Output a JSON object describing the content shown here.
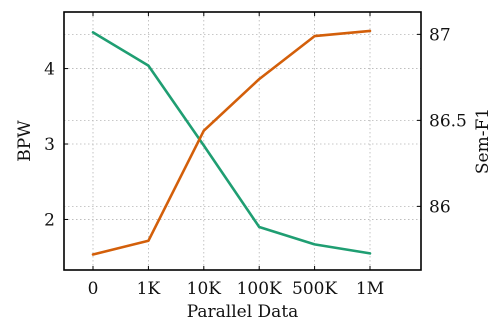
{
  "chart_data": {
    "type": "line",
    "title": "",
    "xlabel": "Parallel Data",
    "ylabel_left": "BPW",
    "ylabel_right": "Sem-F1",
    "categories": [
      "0",
      "1K",
      "10K",
      "100K",
      "500K",
      "1M"
    ],
    "ylim_left": [
      1.33,
      4.75
    ],
    "ylim_right": [
      85.63,
      87.13
    ],
    "yticks_left": [
      "2",
      "3",
      "4"
    ],
    "yticks_right": [
      "86",
      "86.5",
      "87"
    ],
    "grid": true,
    "legend": "none",
    "series": [
      {
        "axis": "left",
        "color": "#1f9e72",
        "values": [
          4.48,
          4.04,
          2.98,
          1.9,
          1.67,
          1.55
        ]
      },
      {
        "axis": "right",
        "color": "#d35f0a",
        "values": [
          85.72,
          85.8,
          86.44,
          86.74,
          86.99,
          87.02
        ]
      }
    ]
  }
}
